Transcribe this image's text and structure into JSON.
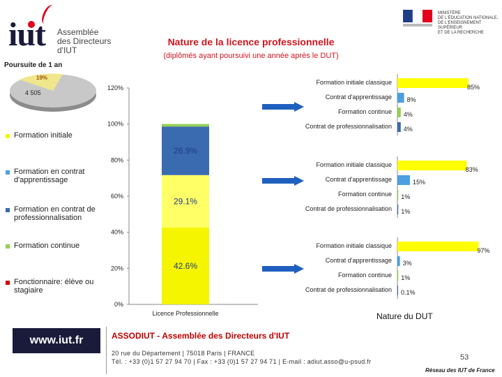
{
  "logo": {
    "brand": "iut",
    "lines": [
      "Assemblée",
      "des Directeurs",
      "d'IUT"
    ]
  },
  "ministry": {
    "lines": [
      "MINISTÈRE",
      "DE L'ÉDUCATION NATIONALE,",
      "DE L'ENSEIGNEMENT SUPÉRIEUR",
      "ET DE LA RECHERCHE"
    ]
  },
  "header": {
    "title": "Nature de la licence professionnelle",
    "subtitle": "(diplômés ayant poursuivi une année après le DUT)"
  },
  "pie": {
    "title": "Poursuite de 1 an",
    "slices": [
      {
        "label": "19%",
        "value": 19,
        "color": "#f0e68c"
      },
      {
        "label": "4 505",
        "value": 81,
        "color": "#bfbfbf"
      }
    ]
  },
  "legend": [
    {
      "label": "Formation initiale",
      "color": "#f5f500"
    },
    {
      "label": "Formation en contrat d'apprentissage",
      "color": "#4aa0e0"
    },
    {
      "label": "Formation en contrat de professionnalisation",
      "color": "#3a6ab0"
    },
    {
      "label": "Formation continue",
      "color": "#92d050"
    },
    {
      "label": "Fonctionnaire: élève ou stagiaire",
      "color": "#d00000"
    }
  ],
  "chart_data": [
    {
      "type": "bar",
      "title": "Nature de la licence professionnelle",
      "stacked": true,
      "categories": [
        "Licence Professionnelle"
      ],
      "yticks": [
        "0%",
        "20%",
        "40%",
        "60%",
        "80%",
        "100%",
        "120%"
      ],
      "ylim": [
        0,
        120
      ],
      "series": [
        {
          "name": "Formation initiale",
          "value": 42.6,
          "label": "42.6%",
          "color": "#f5f500"
        },
        {
          "name": "Formation en contrat d'apprentissage",
          "value": 29.1,
          "label": "29.1%",
          "color": "#ffff66"
        },
        {
          "name": "Formation en contrat de professionnalisation",
          "value": 26.9,
          "label": "26.9%",
          "color": "#3a6ab0"
        },
        {
          "name": "Formation continue",
          "value": 1.4,
          "label": "",
          "color": "#92d050"
        }
      ]
    },
    {
      "type": "bar",
      "orientation": "horizontal",
      "group": "top",
      "categories": [
        "Formation initiale classique",
        "Contrat d'apprentissage",
        "Formation continue",
        "Contrat de professionnalisation"
      ],
      "values": [
        85,
        8,
        4,
        4
      ],
      "labels": [
        "85%",
        "8%",
        "4%",
        "4%"
      ],
      "colors": [
        "#ffff00",
        "#4aa0e0",
        "#92d050",
        "#3a6ab0"
      ],
      "xlim": [
        0,
        100
      ]
    },
    {
      "type": "bar",
      "orientation": "horizontal",
      "group": "middle",
      "categories": [
        "Formation initiale classique",
        "Contrat d'apprentissage",
        "Formation continue",
        "Contrat de professionnalisation"
      ],
      "values": [
        83,
        15,
        1,
        1
      ],
      "labels": [
        "83%",
        "15%",
        "1%",
        "1%"
      ],
      "colors": [
        "#ffff00",
        "#4aa0e0",
        "#92d050",
        "#3a6ab0"
      ],
      "xlim": [
        0,
        100
      ]
    },
    {
      "type": "bar",
      "orientation": "horizontal",
      "group": "bottom",
      "categories": [
        "Formation initiale classique",
        "Contrat d'apprentissage",
        "Formation continue",
        "Contrat de professionnalisation"
      ],
      "values": [
        97,
        3,
        1,
        0.1
      ],
      "labels": [
        "97%",
        "3%",
        "1%",
        "0.1%"
      ],
      "colors": [
        "#ffff00",
        "#4aa0e0",
        "#92d050",
        "#3a6ab0"
      ],
      "xlim": [
        0,
        100
      ]
    }
  ],
  "dut_label": "Nature du DUT",
  "footer": {
    "url": "www.iut.fr",
    "org": "ASSODIUT - Assemblée des Directeurs d'IUT",
    "addr1": "20 rue du Département | 75018 Paris | FRANCE",
    "addr2": "Tél. : +33 (0)1 57 27 94 70 | Fax : +33 (0)1 57 27 94 71 | E-mail : adiut.asso@u-psud.fr",
    "page": "53",
    "reseau": "Réseau des IUT de France"
  }
}
